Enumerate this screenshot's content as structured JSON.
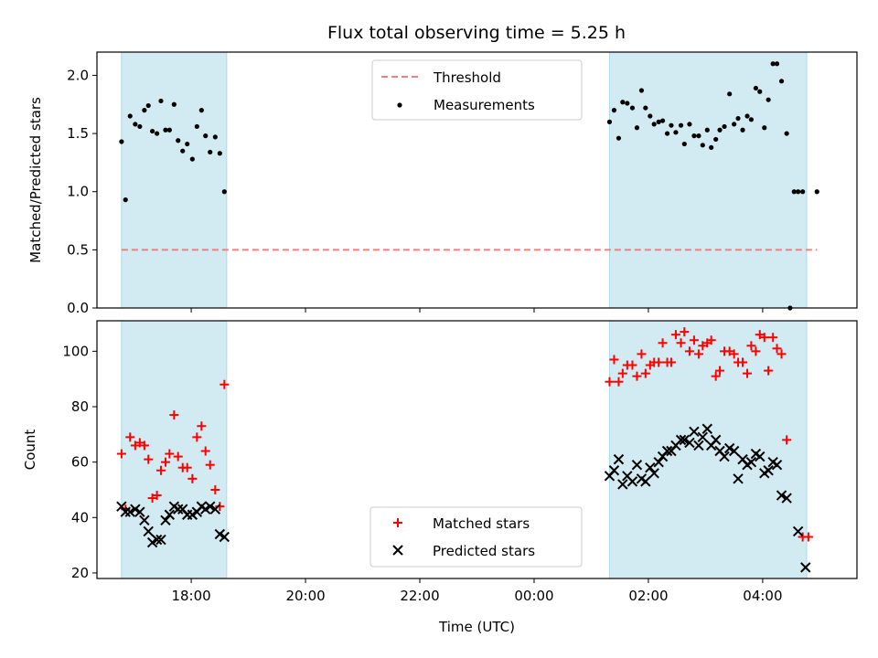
{
  "title": "Flux total observing time = 5.25 h",
  "colors": {
    "shade": "#add8e6",
    "threshold": "#f08080",
    "measurement": "#000000",
    "matched": "#ff0000",
    "predicted": "#000000"
  },
  "chart_data": [
    {
      "type": "scatter",
      "name": "ratio",
      "ylabel": "Matched/Predicted stars",
      "xlim": [
        16.35,
        29.65
      ],
      "ylim": [
        0,
        2.2
      ],
      "yticks": [
        0.0,
        0.5,
        1.0,
        1.5,
        2.0
      ],
      "ytick_labels": [
        "0.0",
        "0.5",
        "1.0",
        "1.5",
        "2.0"
      ],
      "legend_position": "upper-center",
      "shaded_spans": [
        [
          16.78,
          18.62
        ],
        [
          25.32,
          28.77
        ]
      ],
      "threshold": {
        "name": "Threshold",
        "value": 0.5,
        "x_range": [
          16.78,
          28.95
        ]
      },
      "series": [
        {
          "name": "Measurements",
          "x": [
            16.78,
            16.85,
            16.93,
            17.02,
            17.1,
            17.18,
            17.25,
            17.32,
            17.4,
            17.47,
            17.55,
            17.62,
            17.7,
            17.77,
            17.85,
            17.93,
            18.02,
            18.1,
            18.18,
            18.25,
            18.33,
            18.42,
            18.5,
            18.58,
            25.32,
            25.4,
            25.48,
            25.55,
            25.63,
            25.72,
            25.8,
            25.88,
            25.95,
            26.03,
            26.1,
            26.18,
            26.25,
            26.33,
            26.4,
            26.48,
            26.57,
            26.63,
            26.72,
            26.8,
            26.88,
            26.95,
            27.03,
            27.1,
            27.18,
            27.25,
            27.33,
            27.42,
            27.5,
            27.57,
            27.65,
            27.73,
            27.8,
            27.88,
            27.95,
            28.03,
            28.1,
            28.18,
            28.25,
            28.33,
            28.42,
            28.48,
            28.55,
            28.62,
            28.7,
            28.95
          ],
          "y": [
            1.43,
            0.93,
            1.65,
            1.58,
            1.56,
            1.7,
            1.74,
            1.52,
            1.5,
            1.78,
            1.53,
            1.53,
            1.75,
            1.44,
            1.35,
            1.41,
            1.28,
            1.56,
            1.7,
            1.48,
            1.34,
            1.47,
            1.33,
            1.0,
            1.6,
            1.7,
            1.46,
            1.77,
            1.76,
            1.72,
            1.55,
            1.87,
            1.72,
            1.65,
            1.58,
            1.6,
            1.61,
            1.5,
            1.57,
            1.51,
            1.57,
            1.41,
            1.58,
            1.48,
            1.48,
            1.4,
            1.53,
            1.38,
            1.45,
            1.53,
            1.56,
            1.84,
            1.58,
            1.63,
            1.53,
            1.65,
            1.62,
            1.89,
            1.86,
            1.55,
            1.79,
            2.1,
            2.1,
            1.95,
            1.5,
            0.0,
            1.0,
            1.0,
            1.0,
            1.0
          ]
        }
      ]
    },
    {
      "type": "scatter",
      "name": "counts",
      "xlabel": "Time (UTC)",
      "ylabel": "Count",
      "xlim": [
        16.35,
        29.65
      ],
      "ylim": [
        18,
        111
      ],
      "xticks": [
        18,
        20,
        22,
        24,
        26,
        28
      ],
      "xtick_labels": [
        "18:00",
        "20:00",
        "22:00",
        "00:00",
        "02:00",
        "04:00"
      ],
      "yticks": [
        20,
        40,
        60,
        80,
        100
      ],
      "ytick_labels": [
        "20",
        "40",
        "60",
        "80",
        "100"
      ],
      "legend_position": "lower-center",
      "shaded_spans": [
        [
          16.78,
          18.62
        ],
        [
          25.32,
          28.77
        ]
      ],
      "series": [
        {
          "name": "Matched stars",
          "marker": "plus",
          "x": [
            16.78,
            16.85,
            16.93,
            17.02,
            17.1,
            17.18,
            17.25,
            17.32,
            17.4,
            17.47,
            17.55,
            17.62,
            17.7,
            17.77,
            17.85,
            17.93,
            18.02,
            18.1,
            18.18,
            18.25,
            18.33,
            18.42,
            18.5,
            18.58,
            25.32,
            25.4,
            25.48,
            25.55,
            25.63,
            25.72,
            25.8,
            25.88,
            25.95,
            26.03,
            26.1,
            26.18,
            26.25,
            26.33,
            26.4,
            26.48,
            26.57,
            26.63,
            26.72,
            26.8,
            26.88,
            26.95,
            27.03,
            27.1,
            27.18,
            27.25,
            27.33,
            27.42,
            27.5,
            27.57,
            27.65,
            27.73,
            27.8,
            27.88,
            27.95,
            28.03,
            28.1,
            28.18,
            28.25,
            28.33,
            28.42,
            28.7,
            28.8
          ],
          "y": [
            63,
            43,
            69,
            66,
            67,
            66,
            61,
            47,
            48,
            57,
            60,
            63,
            77,
            62,
            58,
            58,
            54,
            69,
            73,
            64,
            59,
            50,
            44,
            88,
            89,
            97,
            89,
            92,
            95,
            95,
            91,
            99,
            92,
            95,
            96,
            96,
            103,
            96,
            96,
            106,
            103,
            107,
            100,
            104,
            99,
            102,
            103,
            104,
            91,
            93,
            100,
            100,
            99,
            96,
            96,
            92,
            102,
            100,
            106,
            105,
            93,
            105,
            101,
            99,
            68,
            33,
            33
          ]
        },
        {
          "name": "Predicted stars",
          "marker": "x",
          "x": [
            16.78,
            16.85,
            16.93,
            17.02,
            17.1,
            17.18,
            17.25,
            17.32,
            17.4,
            17.47,
            17.55,
            17.62,
            17.7,
            17.77,
            17.85,
            17.93,
            18.02,
            18.1,
            18.18,
            18.25,
            18.33,
            18.42,
            18.5,
            18.58,
            25.32,
            25.4,
            25.48,
            25.55,
            25.63,
            25.72,
            25.8,
            25.88,
            25.95,
            26.03,
            26.1,
            26.18,
            26.25,
            26.33,
            26.4,
            26.48,
            26.57,
            26.63,
            26.72,
            26.8,
            26.88,
            26.95,
            27.03,
            27.1,
            27.18,
            27.25,
            27.33,
            27.42,
            27.5,
            27.57,
            27.65,
            27.73,
            27.8,
            27.88,
            27.95,
            28.03,
            28.1,
            28.18,
            28.25,
            28.33,
            28.42,
            28.62,
            28.75
          ],
          "y": [
            44,
            42,
            42,
            43,
            42,
            39,
            35,
            31,
            32,
            32,
            39,
            41,
            44,
            43,
            43,
            41,
            41,
            42,
            44,
            43,
            44,
            43,
            34,
            33,
            55,
            57,
            61,
            52,
            55,
            53,
            59,
            54,
            53,
            58,
            56,
            60,
            62,
            64,
            64,
            66,
            68,
            68,
            67,
            71,
            66,
            69,
            72,
            66,
            68,
            64,
            62,
            65,
            64,
            54,
            61,
            59,
            60,
            63,
            62,
            56,
            57,
            60,
            59,
            48,
            47,
            35,
            22
          ]
        }
      ]
    }
  ]
}
